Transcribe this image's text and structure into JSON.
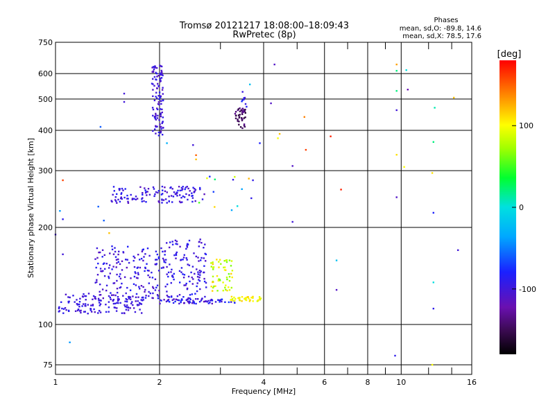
{
  "chart_data": {
    "type": "scatter",
    "title": "Tromsø 20121217 18:08:00–18:09:43",
    "subtitle": "RwPretec (8p)",
    "xlabel": "Frequency [MHz]",
    "ylabel": "Stationary phase Virtual Height [km]",
    "x_scale": "log",
    "y_scale": "log",
    "xlim": [
      1,
      16
    ],
    "ylim": [
      70,
      750
    ],
    "x_ticks": [
      1,
      2,
      4,
      6,
      8,
      10,
      16
    ],
    "x_tick_labels": [
      "1",
      "2",
      "4",
      "6",
      "8",
      "10",
      "16"
    ],
    "x_minor_ticks": [
      3,
      5,
      7,
      9,
      12,
      14
    ],
    "y_ticks": [
      75,
      100,
      200,
      300,
      400,
      500,
      600,
      750
    ],
    "y_tick_labels": [
      "75",
      "100",
      "200",
      "300",
      "400",
      "500",
      "600",
      "750"
    ],
    "grid": true,
    "stats": {
      "header": "Phases",
      "line_o": "mean, sd,O: -89.8, 14.6",
      "line_x": "mean, sd,X: 78.5, 17.6"
    },
    "colorbar": {
      "label": "[deg]",
      "range": [
        -180,
        180
      ],
      "ticks": [
        100,
        0,
        -100
      ],
      "tick_labels": [
        "100",
        "0",
        "-100"
      ],
      "colormap": "rainbow (black-purple-blue-cyan-green-yellow-red)"
    },
    "clusters": [
      {
        "f": [
          1.02,
          1.8
        ],
        "h": [
          108,
          125
        ],
        "phase": [
          -110,
          -85
        ],
        "n": 150
      },
      {
        "f": [
          1.3,
          2.05
        ],
        "h": [
          120,
          175
        ],
        "phase": [
          -115,
          -80
        ],
        "n": 160
      },
      {
        "f": [
          2.05,
          2.75
        ],
        "h": [
          120,
          185
        ],
        "phase": [
          -110,
          -80
        ],
        "n": 130
      },
      {
        "f": [
          2.0,
          3.3
        ],
        "h": [
          116,
          120
        ],
        "phase": [
          -120,
          -70
        ],
        "n": 70
      },
      {
        "f": [
          2.8,
          3.25
        ],
        "h": [
          127,
          160
        ],
        "phase": [
          60,
          120
        ],
        "n": 55
      },
      {
        "f": [
          3.2,
          3.95
        ],
        "h": [
          118,
          122
        ],
        "phase": [
          85,
          120
        ],
        "n": 40
      },
      {
        "f": [
          1.45,
          2.7
        ],
        "h": [
          238,
          268
        ],
        "phase": [
          -115,
          -80
        ],
        "n": 130
      },
      {
        "f": [
          1.9,
          2.05
        ],
        "h": [
          385,
          640
        ],
        "phase": [
          -115,
          -85
        ],
        "n": 110
      },
      {
        "f": [
          3.3,
          3.55
        ],
        "h": [
          405,
          470
        ],
        "phase": [
          -160,
          -130
        ],
        "n": 40
      },
      {
        "f": [
          3.45,
          3.62
        ],
        "h": [
          470,
          545
        ],
        "phase": [
          -110,
          -70
        ],
        "n": 8
      },
      {
        "f": [
          2.6,
          3.8
        ],
        "h": [
          225,
          290
        ],
        "phase": [
          -100,
          130
        ],
        "n": 14
      }
    ],
    "points": [
      [
        4.3,
        640,
        -110
      ],
      [
        4.2,
        485,
        -110
      ],
      [
        1.58,
        520,
        -100
      ],
      [
        1.58,
        490,
        -100
      ],
      [
        1.35,
        410,
        -60
      ],
      [
        1.05,
        280,
        160
      ],
      [
        1.0,
        190,
        -100
      ],
      [
        1.1,
        88,
        -40
      ],
      [
        1.05,
        165,
        -100
      ],
      [
        1.38,
        210,
        -60
      ],
      [
        1.43,
        192,
        120
      ],
      [
        1.03,
        225,
        -40
      ],
      [
        1.05,
        212,
        -90
      ],
      [
        1.33,
        232,
        -60
      ],
      [
        2.1,
        365,
        -30
      ],
      [
        2.55,
        335,
        150
      ],
      [
        2.55,
        325,
        120
      ],
      [
        2.5,
        360,
        -100
      ],
      [
        3.65,
        555,
        -20
      ],
      [
        3.9,
        365,
        -80
      ],
      [
        4.45,
        390,
        120
      ],
      [
        4.4,
        378,
        100
      ],
      [
        5.25,
        440,
        140
      ],
      [
        5.3,
        348,
        160
      ],
      [
        4.85,
        310,
        -110
      ],
      [
        4.85,
        208,
        -100
      ],
      [
        6.25,
        383,
        170
      ],
      [
        6.7,
        262,
        170
      ],
      [
        6.5,
        158,
        -20
      ],
      [
        6.5,
        128,
        -110
      ],
      [
        9.7,
        640,
        130
      ],
      [
        9.7,
        612,
        20
      ],
      [
        10.35,
        615,
        0
      ],
      [
        9.7,
        530,
        20
      ],
      [
        10.45,
        535,
        -120
      ],
      [
        9.7,
        462,
        -100
      ],
      [
        9.7,
        336,
        110
      ],
      [
        10.2,
        308,
        100
      ],
      [
        9.7,
        248,
        -110
      ],
      [
        9.6,
        80,
        -90
      ],
      [
        12.5,
        470,
        10
      ],
      [
        12.4,
        368,
        20
      ],
      [
        12.3,
        295,
        110
      ],
      [
        12.4,
        222,
        -80
      ],
      [
        12.4,
        135,
        0
      ],
      [
        12.4,
        112,
        -90
      ],
      [
        12.3,
        75,
        100
      ],
      [
        14.2,
        505,
        120
      ],
      [
        14.6,
        170,
        -100
      ]
    ]
  }
}
